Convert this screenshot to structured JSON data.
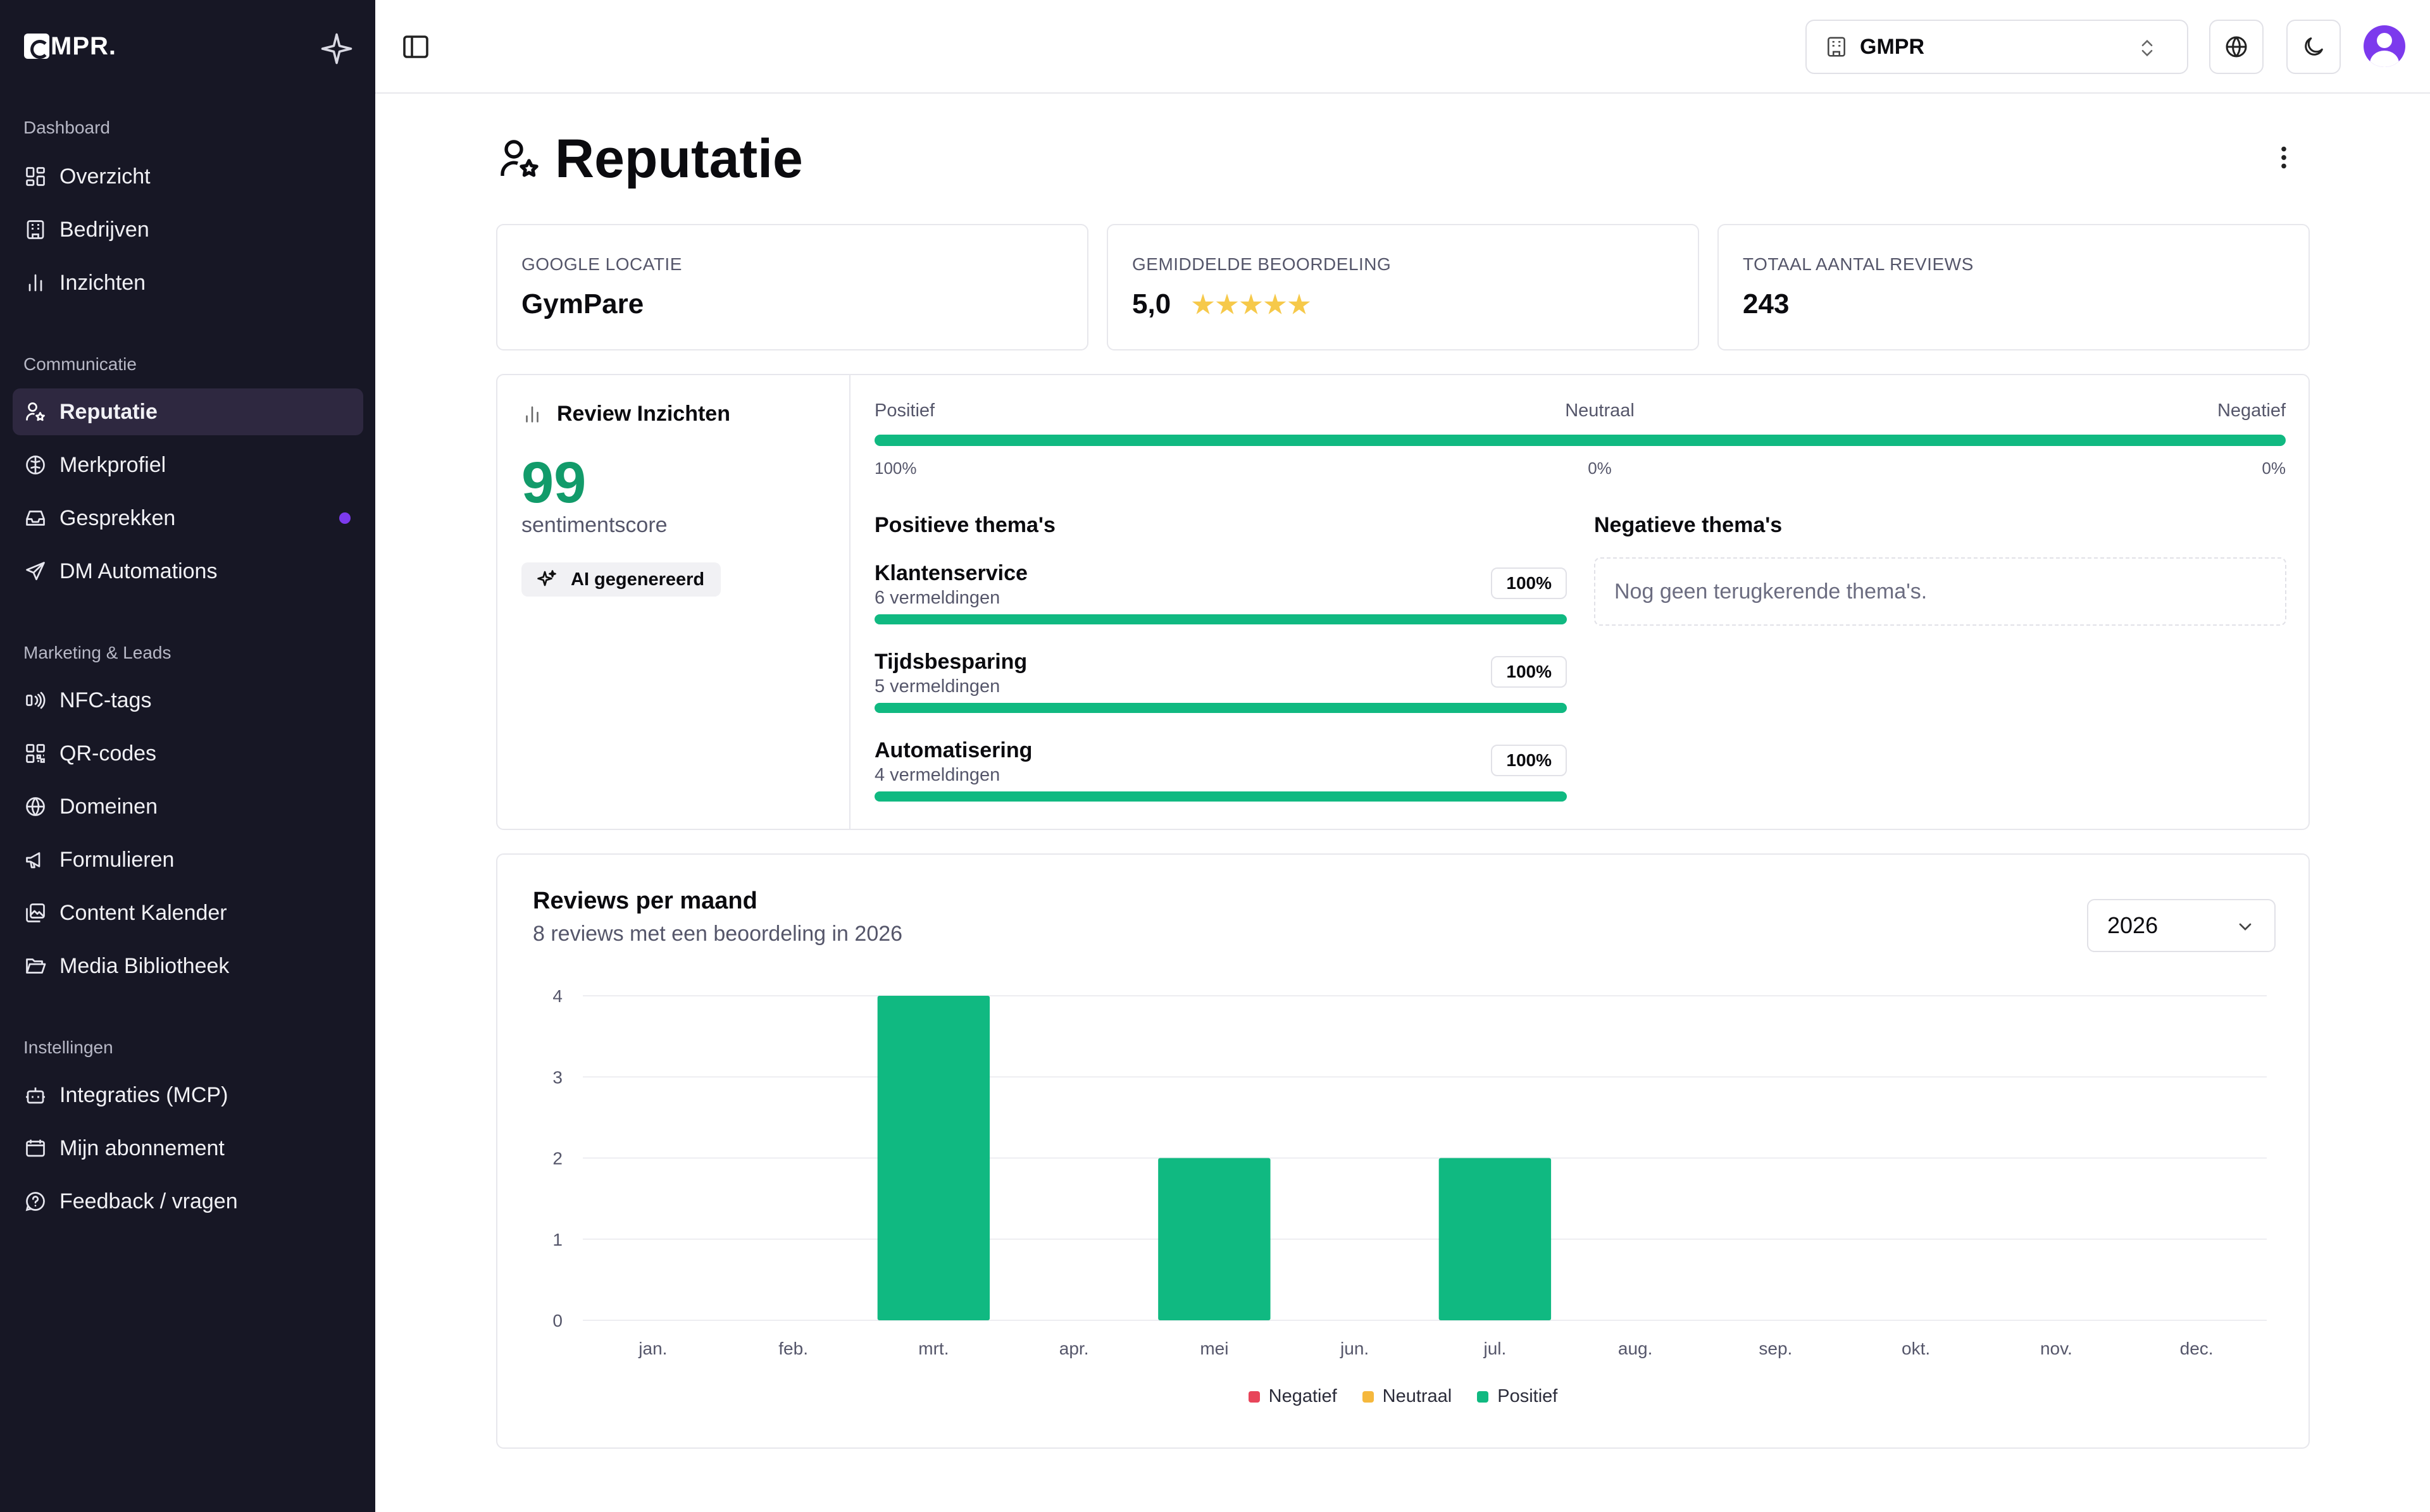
{
  "brand": {
    "name": "MPR."
  },
  "sidebar": {
    "sections": [
      {
        "title": "Dashboard",
        "items": [
          {
            "label": "Overzicht",
            "icon": "layout-grid-icon"
          },
          {
            "label": "Bedrijven",
            "icon": "building-icon"
          },
          {
            "label": "Inzichten",
            "icon": "bar-chart-icon"
          }
        ]
      },
      {
        "title": "Communicatie",
        "items": [
          {
            "label": "Reputatie",
            "icon": "user-star-icon",
            "active": true
          },
          {
            "label": "Merkprofiel",
            "icon": "brain-icon"
          },
          {
            "label": "Gesprekken",
            "icon": "inbox-icon",
            "unread": true
          },
          {
            "label": "DM Automations",
            "icon": "send-icon"
          }
        ]
      },
      {
        "title": "Marketing & Leads",
        "items": [
          {
            "label": "NFC-tags",
            "icon": "nfc-icon"
          },
          {
            "label": "QR-codes",
            "icon": "qr-code-icon"
          },
          {
            "label": "Domeinen",
            "icon": "globe-icon"
          },
          {
            "label": "Formulieren",
            "icon": "megaphone-icon"
          },
          {
            "label": "Content Kalender",
            "icon": "image-calendar-icon"
          },
          {
            "label": "Media Bibliotheek",
            "icon": "folder-open-icon"
          }
        ]
      },
      {
        "title": "Instellingen",
        "items": [
          {
            "label": "Integraties (MCP)",
            "icon": "bot-icon"
          },
          {
            "label": "Mijn abonnement",
            "icon": "wallet-icon"
          },
          {
            "label": "Feedback / vragen",
            "icon": "help-circle-icon"
          }
        ]
      }
    ]
  },
  "topbar": {
    "org_name": "GMPR"
  },
  "page": {
    "title": "Reputatie"
  },
  "stats": [
    {
      "label": "GOOGLE LOCATIE",
      "value": "GymPare"
    },
    {
      "label": "GEMIDDELDE BEOORDELING",
      "value": "5,0",
      "stars": 5
    },
    {
      "label": "TOTAAL AANTAL REVIEWS",
      "value": "243"
    }
  ],
  "insights": {
    "title": "Review Inzichten",
    "score": "99",
    "score_label": "sentimentscore",
    "ai_badge": "AI gegenereerd",
    "sentiment": {
      "labels": [
        "Positief",
        "Neutraal",
        "Negatief"
      ],
      "percents": [
        "100%",
        "0%",
        "0%"
      ],
      "positive_fraction": 1.0
    },
    "positive_title": "Positieve thema's",
    "negative_title": "Negatieve thema's",
    "positive_themes": [
      {
        "name": "Klantenservice",
        "count": "6 vermeldingen",
        "percent": "100%",
        "fraction": 1.0
      },
      {
        "name": "Tijdsbesparing",
        "count": "5 vermeldingen",
        "percent": "100%",
        "fraction": 1.0
      },
      {
        "name": "Automatisering",
        "count": "4 vermeldingen",
        "percent": "100%",
        "fraction": 1.0
      }
    ],
    "negative_empty": "Nog geen terugkerende thema's."
  },
  "reviews_chart": {
    "title": "Reviews per maand",
    "subtitle": "8 reviews met een beoordeling in 2026",
    "year": "2026"
  },
  "chart_data": {
    "type": "bar",
    "stacked": true,
    "categories": [
      "jan.",
      "feb.",
      "mrt.",
      "apr.",
      "mei",
      "jun.",
      "jul.",
      "aug.",
      "sep.",
      "okt.",
      "nov.",
      "dec."
    ],
    "series": [
      {
        "name": "Negatief",
        "color": "#e8455a",
        "values": [
          0,
          0,
          0,
          0,
          0,
          0,
          0,
          0,
          0,
          0,
          0,
          0
        ]
      },
      {
        "name": "Neutraal",
        "color": "#f5b83d",
        "values": [
          0,
          0,
          0,
          0,
          0,
          0,
          0,
          0,
          0,
          0,
          0,
          0
        ]
      },
      {
        "name": "Positief",
        "color": "#10b981",
        "values": [
          0,
          0,
          4,
          0,
          2,
          0,
          2,
          0,
          0,
          0,
          0,
          0
        ]
      }
    ],
    "yticks": [
      0,
      1,
      2,
      3,
      4
    ],
    "ylim": [
      0,
      4
    ],
    "grid": true,
    "legend_position": "bottom"
  },
  "colors": {
    "sidebar_bg": "#171725",
    "accent": "#7c3aed",
    "positive": "#10b981",
    "score": "#129b6a"
  }
}
